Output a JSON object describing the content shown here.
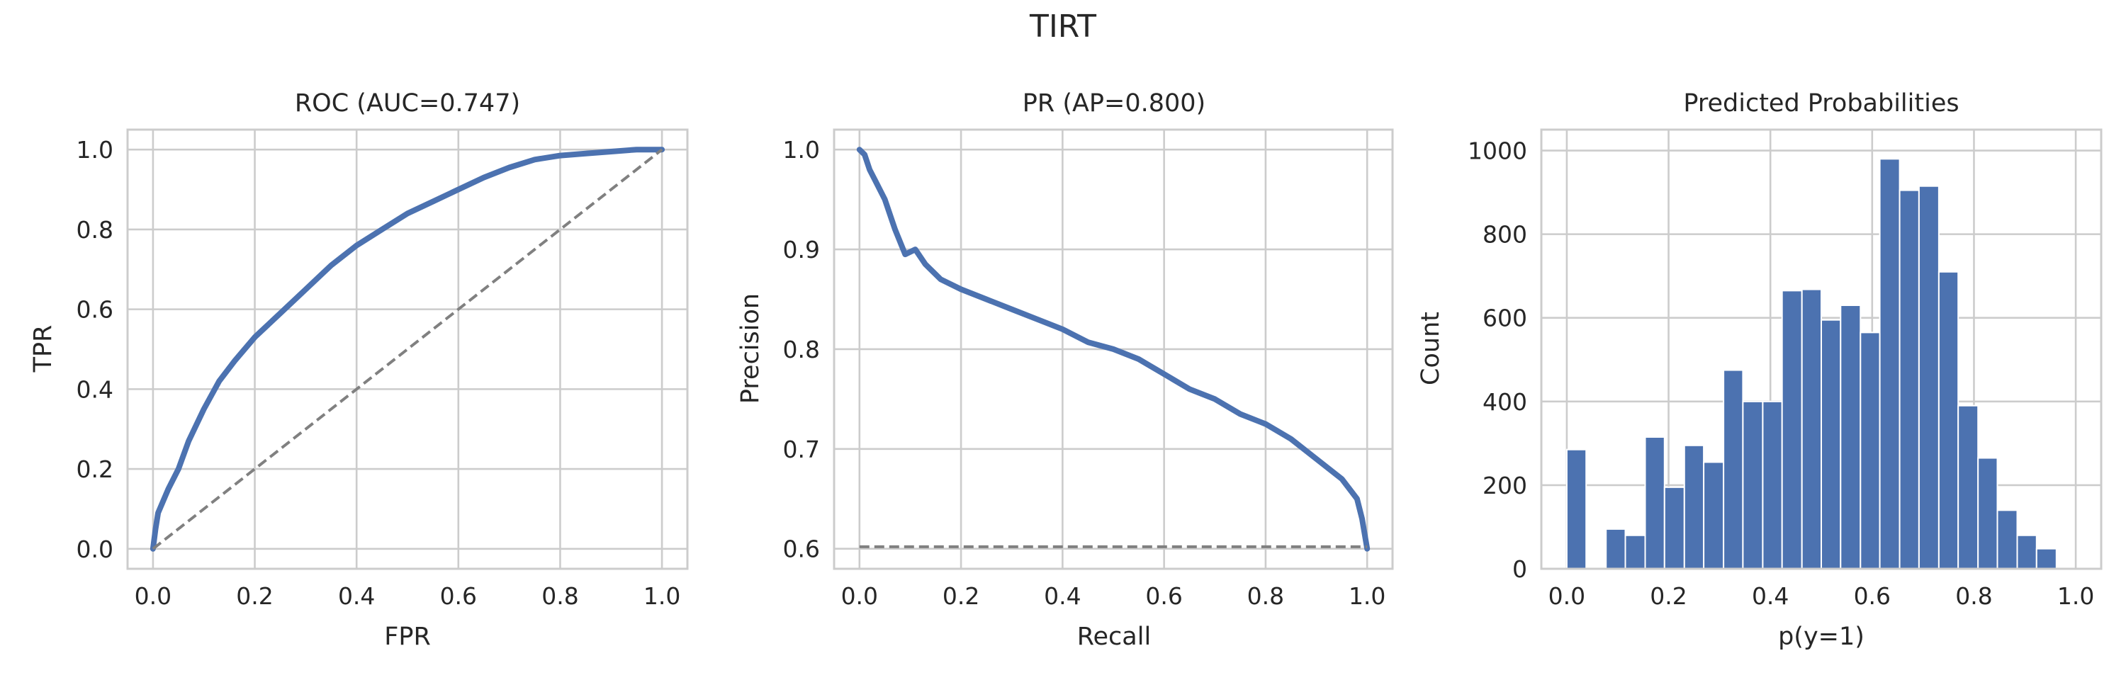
{
  "figure": {
    "title": "TIRT"
  },
  "colors": {
    "series": "#4c72b0",
    "reference": "#808080",
    "grid": "#cccccc"
  },
  "chart_data": [
    {
      "type": "line",
      "title": "ROC (AUC=0.747)",
      "xlabel": "FPR",
      "ylabel": "TPR",
      "xlim": [
        -0.05,
        1.05
      ],
      "ylim": [
        -0.05,
        1.05
      ],
      "xticks": [
        0.0,
        0.2,
        0.4,
        0.6,
        0.8,
        1.0
      ],
      "yticks": [
        0.0,
        0.2,
        0.4,
        0.6,
        0.8,
        1.0
      ],
      "xtick_labels": [
        "0.0",
        "0.2",
        "0.4",
        "0.6",
        "0.8",
        "1.0"
      ],
      "ytick_labels": [
        "0.0",
        "0.2",
        "0.4",
        "0.6",
        "0.8",
        "1.0"
      ],
      "grid": true,
      "series": [
        {
          "x": [
            0.0,
            0.005,
            0.01,
            0.02,
            0.03,
            0.05,
            0.07,
            0.1,
            0.13,
            0.16,
            0.2,
            0.25,
            0.3,
            0.35,
            0.4,
            0.45,
            0.5,
            0.55,
            0.6,
            0.65,
            0.7,
            0.75,
            0.8,
            0.85,
            0.9,
            0.95,
            1.0
          ],
          "y": [
            0.0,
            0.05,
            0.09,
            0.12,
            0.15,
            0.2,
            0.27,
            0.35,
            0.42,
            0.47,
            0.53,
            0.59,
            0.65,
            0.71,
            0.76,
            0.8,
            0.84,
            0.87,
            0.9,
            0.93,
            0.955,
            0.975,
            0.985,
            0.99,
            0.995,
            1.0,
            1.0
          ]
        },
        {
          "style": "dashed",
          "x": [
            0.0,
            1.0
          ],
          "y": [
            0.0,
            1.0
          ]
        }
      ]
    },
    {
      "type": "line",
      "title": "PR (AP=0.800)",
      "xlabel": "Recall",
      "ylabel": "Precision",
      "xlim": [
        -0.05,
        1.05
      ],
      "ylim": [
        0.5799,
        1.02
      ],
      "xticks": [
        0.0,
        0.2,
        0.4,
        0.6,
        0.8,
        1.0
      ],
      "yticks": [
        0.6,
        0.7,
        0.8,
        0.9,
        1.0
      ],
      "xtick_labels": [
        "0.0",
        "0.2",
        "0.4",
        "0.6",
        "0.8",
        "1.0"
      ],
      "ytick_labels": [
        "0.6",
        "0.7",
        "0.8",
        "0.9",
        "1.0"
      ],
      "grid": true,
      "series": [
        {
          "x": [
            0.0,
            0.01,
            0.02,
            0.03,
            0.05,
            0.07,
            0.09,
            0.11,
            0.13,
            0.16,
            0.2,
            0.25,
            0.3,
            0.35,
            0.4,
            0.45,
            0.5,
            0.55,
            0.6,
            0.65,
            0.7,
            0.75,
            0.8,
            0.85,
            0.9,
            0.95,
            0.98,
            0.99,
            1.0
          ],
          "y": [
            1.0,
            0.995,
            0.98,
            0.97,
            0.95,
            0.92,
            0.895,
            0.9,
            0.885,
            0.87,
            0.86,
            0.85,
            0.84,
            0.83,
            0.82,
            0.807,
            0.8,
            0.79,
            0.775,
            0.76,
            0.75,
            0.735,
            0.725,
            0.71,
            0.69,
            0.67,
            0.65,
            0.63,
            0.6
          ]
        },
        {
          "style": "dashed",
          "x": [
            0.0,
            1.0
          ],
          "y": [
            0.602,
            0.602
          ]
        }
      ]
    },
    {
      "type": "bar",
      "title": "Predicted Probabilities",
      "xlabel": "p(y=1)",
      "ylabel": "Count",
      "xlim": [
        -0.05,
        1.05
      ],
      "ylim": [
        0,
        1050
      ],
      "xticks": [
        0.0,
        0.2,
        0.4,
        0.6,
        0.8,
        1.0
      ],
      "yticks": [
        0,
        200,
        400,
        600,
        800,
        1000
      ],
      "xtick_labels": [
        "0.0",
        "0.2",
        "0.4",
        "0.6",
        "0.8",
        "1.0"
      ],
      "ytick_labels": [
        "0",
        "200",
        "400",
        "600",
        "800",
        "1000"
      ],
      "grid": true,
      "bins": [
        [
          0.0,
          0.038
        ],
        [
          0.038,
          0.077
        ],
        [
          0.077,
          0.115
        ],
        [
          0.115,
          0.154
        ],
        [
          0.154,
          0.192
        ],
        [
          0.192,
          0.231
        ],
        [
          0.231,
          0.269
        ],
        [
          0.269,
          0.308
        ],
        [
          0.308,
          0.346
        ],
        [
          0.346,
          0.385
        ],
        [
          0.385,
          0.423
        ],
        [
          0.423,
          0.462
        ],
        [
          0.462,
          0.5
        ],
        [
          0.5,
          0.538
        ],
        [
          0.538,
          0.577
        ],
        [
          0.577,
          0.615
        ],
        [
          0.615,
          0.654
        ],
        [
          0.654,
          0.692
        ],
        [
          0.692,
          0.731
        ],
        [
          0.731,
          0.769
        ],
        [
          0.769,
          0.808
        ],
        [
          0.808,
          0.846
        ],
        [
          0.846,
          0.885
        ],
        [
          0.885,
          0.923
        ],
        [
          0.923,
          0.962
        ],
        [
          0.962,
          1.0
        ]
      ],
      "values": [
        285,
        0,
        95,
        80,
        315,
        195,
        295,
        255,
        475,
        400,
        400,
        665,
        668,
        595,
        630,
        565,
        980,
        905,
        915,
        710,
        390,
        265,
        140,
        80,
        48,
        0
      ]
    }
  ]
}
